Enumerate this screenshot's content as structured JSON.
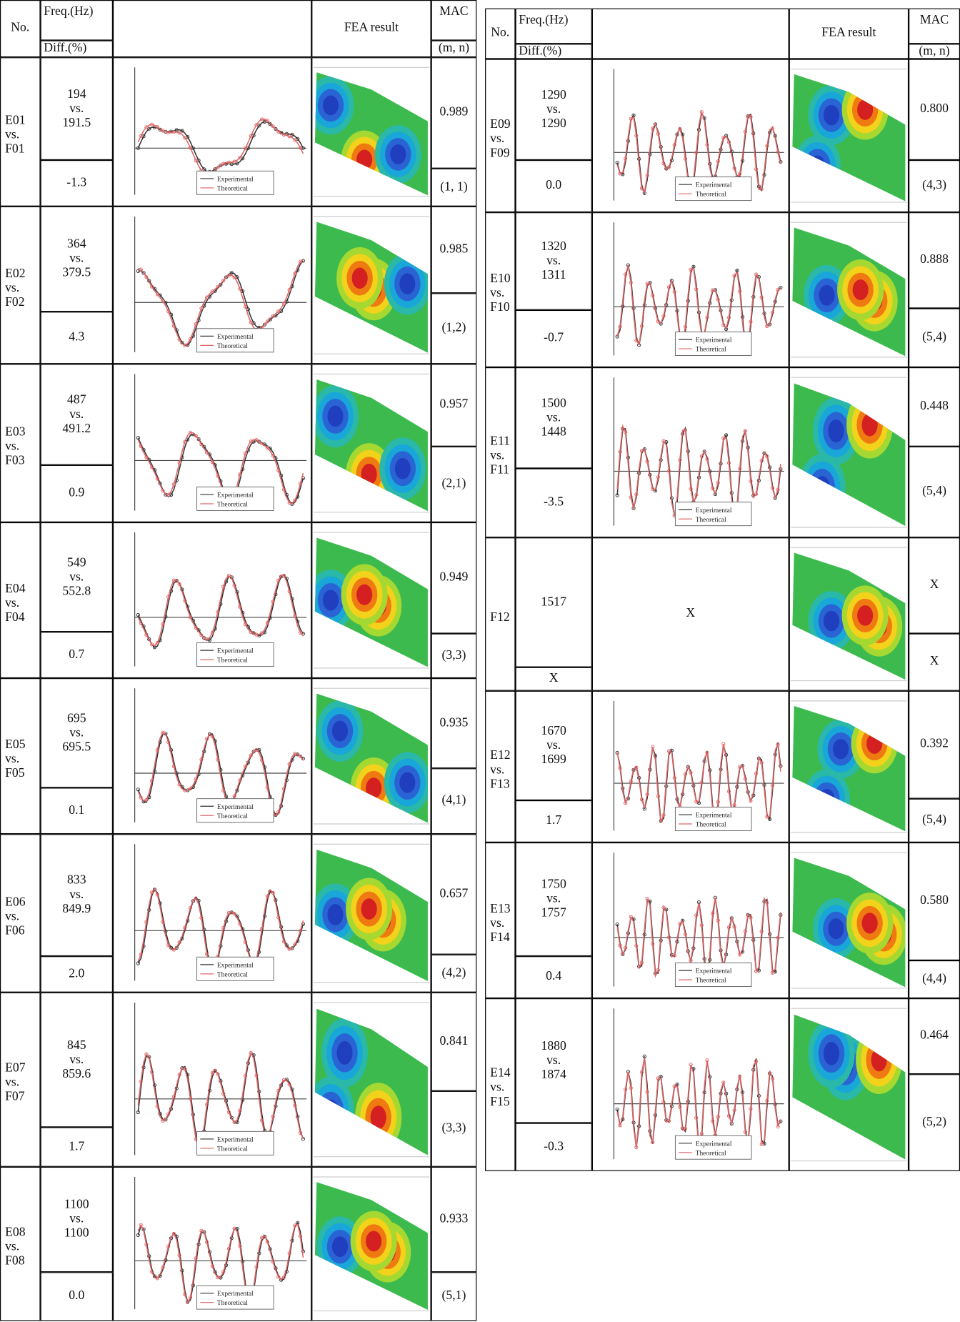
{
  "header": {
    "no": "No.",
    "freq": "Freq.(Hz)",
    "diff": "Diff.(%)",
    "fea": "FEA result",
    "mac": "MAC",
    "mode": "(m, n)"
  },
  "legend": {
    "experimental": "Experimental",
    "theoretical": "Theoretical"
  },
  "left_table": {
    "rows": [
      {
        "no": [
          "E01",
          "vs.",
          "F01"
        ],
        "freq": [
          "194",
          "vs.",
          "191.5"
        ],
        "diff": "-1.3",
        "mac": "0.989",
        "mode": "(1, 1)"
      },
      {
        "no": [
          "E02",
          "vs.",
          "F02"
        ],
        "freq": [
          "364",
          "vs.",
          "379.5"
        ],
        "diff": "4.3",
        "mac": "0.985",
        "mode": "(1,2)"
      },
      {
        "no": [
          "E03",
          "vs.",
          "F03"
        ],
        "freq": [
          "487",
          "vs.",
          "491.2"
        ],
        "diff": "0.9",
        "mac": "0.957",
        "mode": "(2,1)"
      },
      {
        "no": [
          "E04",
          "vs.",
          "F04"
        ],
        "freq": [
          "549",
          "vs.",
          "552.8"
        ],
        "diff": "0.7",
        "mac": "0.949",
        "mode": "(3,3)"
      },
      {
        "no": [
          "E05",
          "vs.",
          "F05"
        ],
        "freq": [
          "695",
          "vs.",
          "695.5"
        ],
        "diff": "0.1",
        "mac": "0.935",
        "mode": "(4,1)"
      },
      {
        "no": [
          "E06",
          "vs.",
          "F06"
        ],
        "freq": [
          "833",
          "vs.",
          "849.9"
        ],
        "diff": "2.0",
        "mac": "0.657",
        "mode": "(4,2)"
      },
      {
        "no": [
          "E07",
          "vs.",
          "F07"
        ],
        "freq": [
          "845",
          "vs.",
          "859.6"
        ],
        "diff": "1.7",
        "mac": "0.841",
        "mode": "(3,3)"
      },
      {
        "no": [
          "E08",
          "vs.",
          "F08"
        ],
        "freq": [
          "1100",
          "vs.",
          "1100"
        ],
        "diff": "0.0",
        "mac": "0.933",
        "mode": "(5,1)"
      }
    ]
  },
  "right_table": {
    "rows": [
      {
        "no": [
          "E09",
          "vs.",
          "F09"
        ],
        "freq": [
          "1290",
          "vs.",
          "1290"
        ],
        "diff": "0.0",
        "mac": "0.800",
        "mode": "(4,3)"
      },
      {
        "no": [
          "E10",
          "vs.",
          "F10"
        ],
        "freq": [
          "1320",
          "vs.",
          "1311"
        ],
        "diff": "-0.7",
        "mac": "0.888",
        "mode": "(5,4)"
      },
      {
        "no": [
          "E11",
          "vs.",
          "F11"
        ],
        "freq": [
          "1500",
          "vs.",
          "1448"
        ],
        "diff": "-3.5",
        "mac": "0.448",
        "mode": "(5,4)"
      },
      {
        "no": [
          "F12"
        ],
        "freq": [
          "1517"
        ],
        "diff": "X",
        "plot": "X",
        "mac": "X",
        "mode": "X"
      },
      {
        "no": [
          "E12",
          "vs.",
          "F13"
        ],
        "freq": [
          "1670",
          "vs.",
          "1699"
        ],
        "diff": "1.7",
        "mac": "0.392",
        "mode": "(5,4)"
      },
      {
        "no": [
          "E13",
          "vs.",
          "F14"
        ],
        "freq": [
          "1750",
          "vs.",
          "1757"
        ],
        "diff": "0.4",
        "mac": "0.580",
        "mode": "(4,4)"
      },
      {
        "no": [
          "E14",
          "vs.",
          "F15"
        ],
        "freq": [
          "1880",
          "vs.",
          "1874"
        ],
        "diff": "-0.3",
        "mac": "0.464",
        "mode": "(5,2)"
      }
    ]
  }
}
